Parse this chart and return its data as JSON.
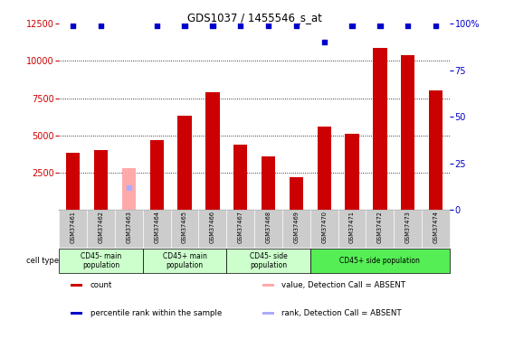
{
  "title": "GDS1037 / 1455546_s_at",
  "samples": [
    "GSM37461",
    "GSM37462",
    "GSM37463",
    "GSM37464",
    "GSM37465",
    "GSM37466",
    "GSM37467",
    "GSM37468",
    "GSM37469",
    "GSM37470",
    "GSM37471",
    "GSM37472",
    "GSM37473",
    "GSM37474"
  ],
  "bar_values": [
    3800,
    4000,
    2800,
    4700,
    6300,
    7900,
    4400,
    3600,
    2200,
    5600,
    5100,
    10900,
    10400,
    8000
  ],
  "bar_colors": [
    "#cc0000",
    "#cc0000",
    "#ffaaaa",
    "#cc0000",
    "#cc0000",
    "#cc0000",
    "#cc0000",
    "#cc0000",
    "#cc0000",
    "#cc0000",
    "#cc0000",
    "#cc0000",
    "#cc0000",
    "#cc0000"
  ],
  "rank_values": [
    99,
    99,
    12,
    99,
    99,
    99,
    99,
    99,
    99,
    90,
    99,
    99,
    99,
    99
  ],
  "rank_colors": [
    "#0000cc",
    "#0000cc",
    "#aaaaff",
    "#0000cc",
    "#0000cc",
    "#0000cc",
    "#0000cc",
    "#0000cc",
    "#0000cc",
    "#0000cc",
    "#0000cc",
    "#0000cc",
    "#0000cc",
    "#0000cc"
  ],
  "ylim_left": [
    0,
    12500
  ],
  "ylim_right": [
    0,
    100
  ],
  "yticks_left": [
    2500,
    5000,
    7500,
    10000,
    12500
  ],
  "yticks_right": [
    0,
    25,
    50,
    75,
    100
  ],
  "left_tick_color": "#cc0000",
  "right_tick_color": "#0000cc",
  "cell_groups": [
    {
      "label": "CD45- main\npopulation",
      "start": 0,
      "end": 2,
      "color": "#ccffcc"
    },
    {
      "label": "CD45+ main\npopulation",
      "start": 3,
      "end": 5,
      "color": "#ccffcc"
    },
    {
      "label": "CD45- side\npopulation",
      "start": 6,
      "end": 8,
      "color": "#ccffcc"
    },
    {
      "label": "CD45+ side population",
      "start": 9,
      "end": 13,
      "color": "#55ee55"
    }
  ],
  "cell_type_label": "cell type",
  "legend_items": [
    {
      "label": "count",
      "color": "#cc0000"
    },
    {
      "label": "percentile rank within the sample",
      "color": "#0000cc"
    },
    {
      "label": "value, Detection Call = ABSENT",
      "color": "#ffaaaa"
    },
    {
      "label": "rank, Detection Call = ABSENT",
      "color": "#aaaaff"
    }
  ],
  "grid_color": "black",
  "bg_color": "white",
  "sample_box_color": "#cccccc",
  "dotted_lines": [
    2500,
    5000,
    7500,
    10000
  ]
}
